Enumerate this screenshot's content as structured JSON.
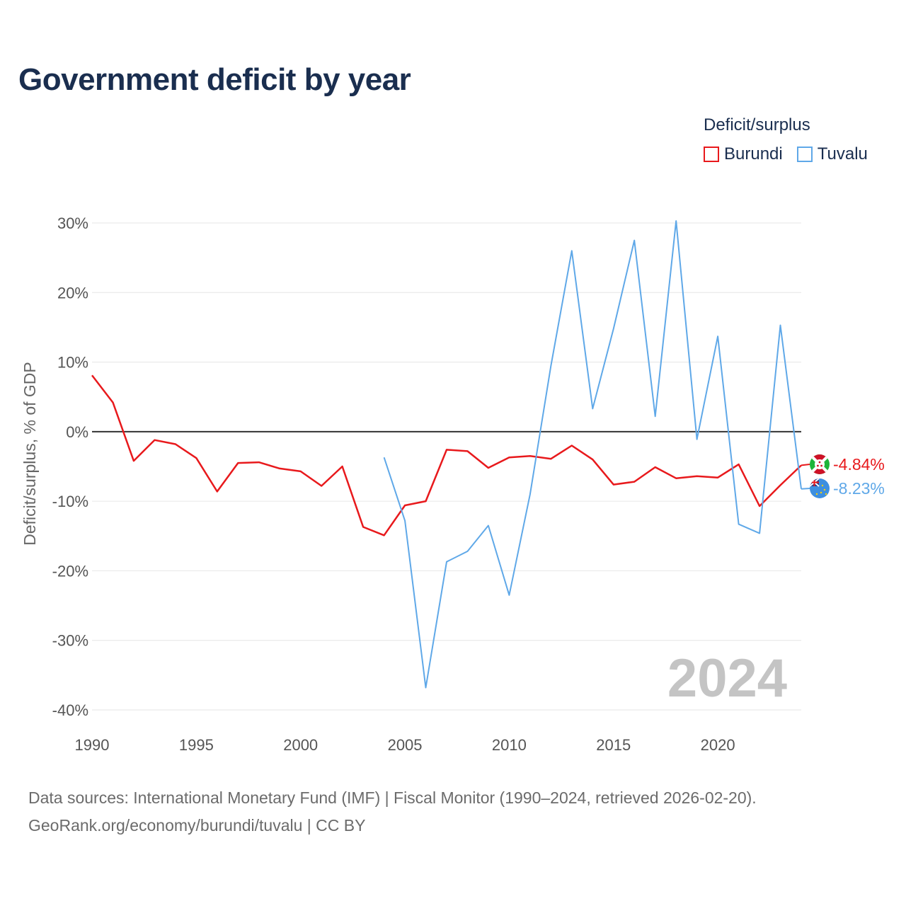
{
  "header": {
    "title": "Government deficit by year"
  },
  "legend": {
    "title": "Deficit/surplus"
  },
  "footer": {
    "source_line1": "Data sources: International Monetary Fund (IMF) | Fiscal Monitor (1990–2024, retrieved 2026-02-20).",
    "source_line2": "GeoRank.org/economy/burundi/tuvalu | CC BY"
  },
  "chart_data": {
    "type": "line",
    "title": "Government deficit by year",
    "xlabel": "",
    "ylabel": "Deficit/surplus, % of GDP",
    "xlim": [
      1990,
      2024
    ],
    "ylim": [
      -40,
      30
    ],
    "x_ticks": [
      1990,
      1995,
      2000,
      2005,
      2010,
      2015,
      2020
    ],
    "y_ticks": [
      30,
      20,
      10,
      0,
      -10,
      -20,
      -30,
      -40
    ],
    "y_tick_labels": [
      "30%",
      "20%",
      "10%",
      "0%",
      "-10%",
      "-20%",
      "-30%",
      "-40%"
    ],
    "year_label": "2024",
    "legend_position": "top-right",
    "series": [
      {
        "name": "Burundi",
        "color": "#e8191c",
        "end_label": "-4.84%",
        "icon": "burundi-flag-icon",
        "points": [
          [
            1990,
            8.1
          ],
          [
            1991,
            4.2
          ],
          [
            1992,
            -4.2
          ],
          [
            1993,
            -1.2
          ],
          [
            1994,
            -1.8
          ],
          [
            1995,
            -3.8
          ],
          [
            1996,
            -8.6
          ],
          [
            1997,
            -4.5
          ],
          [
            1998,
            -4.4
          ],
          [
            1999,
            -5.3
          ],
          [
            2000,
            -5.7
          ],
          [
            2001,
            -7.8
          ],
          [
            2002,
            -5.0
          ],
          [
            2003,
            -13.7
          ],
          [
            2004,
            -14.9
          ],
          [
            2005,
            -10.6
          ],
          [
            2006,
            -10.0
          ],
          [
            2007,
            -2.6
          ],
          [
            2008,
            -2.8
          ],
          [
            2009,
            -5.2
          ],
          [
            2010,
            -3.7
          ],
          [
            2011,
            -3.5
          ],
          [
            2012,
            -3.9
          ],
          [
            2013,
            -2.0
          ],
          [
            2014,
            -4.0
          ],
          [
            2015,
            -7.6
          ],
          [
            2016,
            -7.2
          ],
          [
            2017,
            -5.1
          ],
          [
            2018,
            -6.7
          ],
          [
            2019,
            -6.4
          ],
          [
            2020,
            -6.6
          ],
          [
            2021,
            -4.7
          ],
          [
            2022,
            -10.7
          ],
          [
            2023,
            -7.7
          ],
          [
            2024,
            -4.84
          ]
        ]
      },
      {
        "name": "Tuvalu",
        "color": "#5fa8e8",
        "end_label": "-8.23%",
        "icon": "tuvalu-flag-icon",
        "points": [
          [
            2004,
            -3.7
          ],
          [
            2005,
            -12.8
          ],
          [
            2006,
            -36.8
          ],
          [
            2007,
            -18.7
          ],
          [
            2008,
            -17.2
          ],
          [
            2009,
            -13.5
          ],
          [
            2010,
            -23.5
          ],
          [
            2011,
            -9.0
          ],
          [
            2012,
            9.5
          ],
          [
            2013,
            26.0
          ],
          [
            2014,
            3.3
          ],
          [
            2015,
            14.8
          ],
          [
            2016,
            27.5
          ],
          [
            2017,
            2.2
          ],
          [
            2018,
            30.3
          ],
          [
            2019,
            -1.1
          ],
          [
            2020,
            13.7
          ],
          [
            2021,
            -13.3
          ],
          [
            2022,
            -14.6
          ],
          [
            2023,
            15.3
          ],
          [
            2024,
            -8.23
          ]
        ]
      }
    ]
  }
}
